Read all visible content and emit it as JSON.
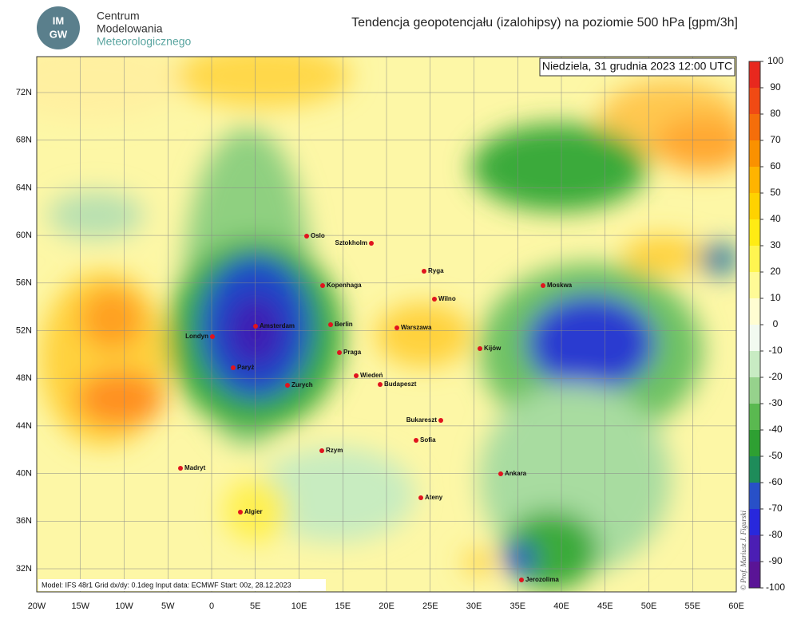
{
  "header": {
    "logo": [
      "IM",
      "GW"
    ],
    "org_lines": [
      "Centrum",
      "Modelowania",
      "Meteorologicznego"
    ],
    "title": "Tendencja geopotencjału (izalohipsy) na poziomie 500 hPa  [gpm/3h]"
  },
  "map": {
    "date": "Niedziela, 31 grudnia 2023 12:00 UTC",
    "lon_labels": [
      "20W",
      "15W",
      "10W",
      "5W",
      "0",
      "5E",
      "10E",
      "15E",
      "20E",
      "25E",
      "30E",
      "35E",
      "40E",
      "45E",
      "50E",
      "55E",
      "60E"
    ],
    "lat_labels": [
      "72N",
      "68N",
      "64N",
      "60N",
      "56N",
      "52N",
      "48N",
      "44N",
      "40N",
      "36N",
      "32N"
    ],
    "cities": [
      "Oslo",
      "Sztokholm",
      "Ryga",
      "Moskwa",
      "Kopenhaga",
      "Wilno",
      "Amsterdam",
      "Berlin",
      "Warszawa",
      "Londyn",
      "Kijów",
      "Praga",
      "Paryż",
      "Wiedeń",
      "Zurych",
      "Budapeszt",
      "Bukareszt",
      "Sofia",
      "Rzym",
      "Madryt",
      "Ankara",
      "Ateny",
      "Algier",
      "Jerozolima"
    ],
    "footer": "Model: IFS 48r1  Grid dx/dy: 0.1deg  Input data: ECMWF  Start: 00z, 28.12.2023",
    "credit": "© Prof. Mariusz J. Figurski"
  },
  "colorbar": {
    "ticks": [
      100,
      90,
      80,
      70,
      60,
      50,
      40,
      30,
      20,
      10,
      0,
      -10,
      -20,
      -30,
      -40,
      -50,
      -60,
      -70,
      -80,
      -90,
      -100
    ],
    "colors": [
      "#e8281e",
      "#f04a14",
      "#f56e0a",
      "#fa9100",
      "#ffb400",
      "#ffd200",
      "#ffeb14",
      "#fff550",
      "#fffa96",
      "#fffdd2",
      "#f2faf0",
      "#c8ebc3",
      "#96d28c",
      "#5ab950",
      "#2ea032",
      "#1e8c5a",
      "#2850c8",
      "#2828dc",
      "#4b1eb4",
      "#5a1496"
    ]
  }
}
